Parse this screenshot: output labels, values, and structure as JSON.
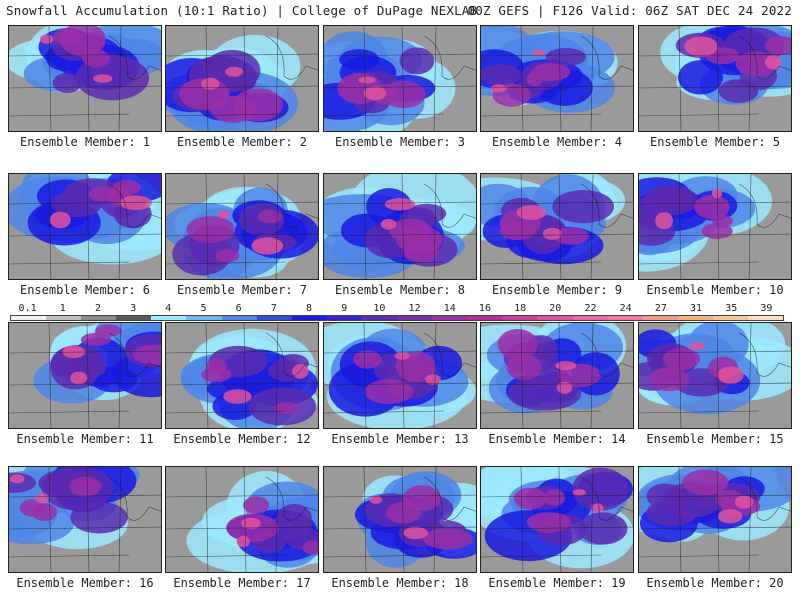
{
  "header": {
    "left_title": "Snowfall Accumulation (10:1 Ratio) | College of DuPage NEXLAB",
    "right_title": "00Z GEFS | F126 Valid: 06Z SAT DEC 24 2022"
  },
  "colorbar": {
    "labels": [
      "0.1",
      "1",
      "2",
      "3",
      "4",
      "5",
      "6",
      "7",
      "8",
      "9",
      "10",
      "12",
      "14",
      "16",
      "18",
      "20",
      "22",
      "24",
      "27",
      "31",
      "35",
      "39"
    ],
    "colors": [
      "#f2f2f2",
      "#bdbdbd",
      "#8c8c8c",
      "#5a5a5a",
      "#9ee9ff",
      "#6fb6f2",
      "#4f86e6",
      "#2f4fd6",
      "#1a1ae0",
      "#3a22c4",
      "#5a2cb0",
      "#7a2ea8",
      "#9a2fa8",
      "#b32f9e",
      "#cc3a9c",
      "#e0529f",
      "#ea6aa8",
      "#f07aa6",
      "#f19a8a",
      "#f3b27c",
      "#f6c79a",
      "#f9dfc2"
    ]
  },
  "members": [
    {
      "label": "Ensemble Member: 1"
    },
    {
      "label": "Ensemble Member: 2"
    },
    {
      "label": "Ensemble Member: 3"
    },
    {
      "label": "Ensemble Member: 4"
    },
    {
      "label": "Ensemble Member: 5"
    },
    {
      "label": "Ensemble Member: 6"
    },
    {
      "label": "Ensemble Member: 7"
    },
    {
      "label": "Ensemble Member: 8"
    },
    {
      "label": "Ensemble Member: 9"
    },
    {
      "label": "Ensemble Member: 10"
    },
    {
      "label": "Ensemble Member: 11"
    },
    {
      "label": "Ensemble Member: 12"
    },
    {
      "label": "Ensemble Member: 13"
    },
    {
      "label": "Ensemble Member: 14"
    },
    {
      "label": "Ensemble Member: 15"
    },
    {
      "label": "Ensemble Member: 16"
    },
    {
      "label": "Ensemble Member: 17"
    },
    {
      "label": "Ensemble Member: 18"
    },
    {
      "label": "Ensemble Member: 19"
    },
    {
      "label": "Ensemble Member: 20"
    }
  ]
}
